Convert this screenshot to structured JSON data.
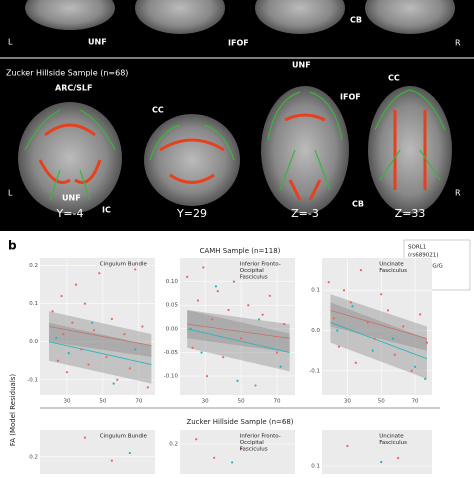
{
  "panel_a": {
    "top_labels": [
      "L",
      "UNF",
      "IFOF",
      "CB",
      "R"
    ],
    "section_title": "Zucker Hillside Sample (n=68)",
    "labels": [
      "UNF",
      "ARC/SLF",
      "CC",
      "IFOF",
      "CC",
      "L",
      "UNF",
      "IC",
      "CB",
      "R"
    ],
    "slices": [
      "Y=-4",
      "Y=29",
      "Z=-3",
      "Z=33"
    ]
  },
  "panel_b": {
    "label": "b",
    "row_titles": [
      "CAMH Sample (n=118)",
      "Zucker Hillside Sample (n=68)"
    ],
    "y_label": "FA (Model Residuals)",
    "legend": {
      "title": [
        "SORL1",
        "(rs689021)"
      ],
      "entries": [
        {
          "name": "G/A, G/G",
          "color": "#f0625a"
        },
        {
          "name": "A/A",
          "color": "#1bb6c0"
        }
      ]
    }
  },
  "chart_data": [
    {
      "type": "scatter",
      "title": [
        "Cingulum Bundle"
      ],
      "xlim": [
        15,
        79
      ],
      "ylim": [
        -0.14,
        0.22
      ],
      "xticks": [
        30,
        50,
        70
      ],
      "yticks": [
        0.2,
        0.1,
        {
          "value": 0,
          "label": "0.0"
        },
        -0.1
      ],
      "series": [
        {
          "color": "#f0625a",
          "x": [
            22,
            25,
            27,
            28,
            30,
            33,
            35,
            38,
            40,
            42,
            45,
            48,
            52,
            55,
            58,
            62,
            65,
            68,
            72,
            75
          ],
          "y": [
            0.08,
            -0.05,
            0.12,
            0.02,
            -0.08,
            0.05,
            0.15,
            -0.02,
            0.1,
            -0.06,
            0.03,
            0.18,
            -0.04,
            0.06,
            -0.1,
            0.02,
            -0.07,
            0.19,
            0.04,
            -0.12
          ]
        },
        {
          "color": "#1bb6c0",
          "x": [
            24,
            31,
            44,
            56,
            68
          ],
          "y": [
            0.01,
            -0.03,
            0.05,
            -0.11,
            -0.02
          ]
        }
      ],
      "fits": [
        {
          "color": "#f0625a",
          "x": [
            20,
            77
          ],
          "y": [
            0.04,
            -0.01
          ],
          "lower": [
            0.0,
            -0.04
          ],
          "upper": [
            0.08,
            0.02
          ]
        },
        {
          "color": "#1bb6c0",
          "x": [
            20,
            77
          ],
          "y": [
            0.0,
            -0.06
          ],
          "lower": [
            -0.05,
            -0.11
          ],
          "upper": [
            0.05,
            -0.01
          ]
        }
      ]
    },
    {
      "type": "scatter",
      "title": [
        "Inferior Fronto-",
        "Occipital",
        "Fasciculus"
      ],
      "xlim": [
        16,
        80
      ],
      "ylim": [
        -0.14,
        0.15
      ],
      "xticks": [
        30,
        50,
        70
      ],
      "yticks": [
        {
          "value": 0.1,
          "label": "0.10"
        },
        0.05,
        {
          "value": 0,
          "label": "0.00"
        },
        -0.05,
        {
          "value": -0.1,
          "label": "-0.10"
        }
      ],
      "series": [
        {
          "color": "#f0625a",
          "x": [
            20,
            23,
            26,
            29,
            31,
            34,
            37,
            40,
            43,
            46,
            50,
            54,
            58,
            62,
            66,
            70,
            74
          ],
          "y": [
            0.11,
            -0.04,
            0.06,
            0.13,
            -0.1,
            0.02,
            0.08,
            -0.06,
            0.04,
            0.1,
            -0.02,
            0.05,
            -0.12,
            0.03,
            0.07,
            -0.05,
            0.01
          ]
        },
        {
          "color": "#1bb6c0",
          "x": [
            22,
            28,
            36,
            48,
            60,
            72
          ],
          "y": [
            0.0,
            -0.05,
            0.09,
            -0.11,
            0.02,
            -0.08
          ]
        }
      ],
      "fits": [
        {
          "color": "#f0625a",
          "x": [
            20,
            77
          ],
          "y": [
            0.01,
            -0.02
          ],
          "lower": [
            -0.02,
            -0.05
          ],
          "upper": [
            0.04,
            0.01
          ]
        },
        {
          "color": "#1bb6c0",
          "x": [
            20,
            77
          ],
          "y": [
            0.0,
            -0.05
          ],
          "lower": [
            -0.04,
            -0.09
          ],
          "upper": [
            0.04,
            -0.01
          ]
        }
      ]
    },
    {
      "type": "scatter",
      "title": [
        "Uncinate",
        "Fasciculus"
      ],
      "xlim": [
        15,
        80
      ],
      "ylim": [
        -0.16,
        0.18
      ],
      "xticks": [
        30,
        50,
        70
      ],
      "yticks": [
        0.1,
        {
          "value": 0,
          "label": "0.0"
        },
        -0.1
      ],
      "series": [
        {
          "color": "#f0625a",
          "x": [
            19,
            22,
            25,
            28,
            32,
            35,
            38,
            42,
            46,
            50,
            54,
            58,
            63,
            68,
            73,
            77
          ],
          "y": [
            0.12,
            0.03,
            -0.04,
            0.1,
            0.07,
            -0.08,
            0.15,
            0.02,
            -0.02,
            0.09,
            0.05,
            -0.06,
            0.01,
            -0.1,
            0.04,
            -0.03
          ]
        },
        {
          "color": "#1bb6c0",
          "x": [
            24,
            33,
            45,
            57,
            70,
            76
          ],
          "y": [
            0.0,
            0.06,
            -0.05,
            -0.02,
            -0.09,
            -0.12
          ]
        }
      ],
      "fits": [
        {
          "color": "#f0625a",
          "x": [
            20,
            77
          ],
          "y": [
            0.05,
            -0.02
          ],
          "lower": [
            0.01,
            -0.05
          ],
          "upper": [
            0.09,
            0.01
          ]
        },
        {
          "color": "#1bb6c0",
          "x": [
            20,
            77
          ],
          "y": [
            0.02,
            -0.07
          ],
          "lower": [
            -0.03,
            -0.12
          ],
          "upper": [
            0.07,
            -0.02
          ]
        }
      ]
    },
    {
      "type": "scatter",
      "title": [
        "Cingulum Bundle"
      ],
      "xlim": [
        15,
        79
      ],
      "ylim": [
        0.155,
        0.27
      ],
      "yticks": [
        0.2
      ],
      "series": [
        {
          "color": "#f0625a",
          "x": [
            40,
            55
          ],
          "y": [
            0.25,
            0.19
          ]
        },
        {
          "color": "#1bb6c0",
          "x": [
            65
          ],
          "y": [
            0.21
          ]
        }
      ]
    },
    {
      "type": "scatter",
      "title": [
        "Inferior Fronto-",
        "Occipital",
        "Fasciculus"
      ],
      "xlim": [
        16,
        80
      ],
      "ylim": [
        0.135,
        0.23
      ],
      "yticks": [
        0.2
      ],
      "series": [
        {
          "color": "#f0625a",
          "x": [
            25,
            35,
            50
          ],
          "y": [
            0.21,
            0.17,
            0.19
          ]
        },
        {
          "color": "#1bb6c0",
          "x": [
            45
          ],
          "y": [
            0.16
          ]
        }
      ]
    },
    {
      "type": "scatter",
      "title": [
        "Uncinate",
        "Fasciculus"
      ],
      "xlim": [
        15,
        80
      ],
      "ylim": [
        0.08,
        0.19
      ],
      "yticks": [
        0.1
      ],
      "series": [
        {
          "color": "#f0625a",
          "x": [
            30,
            60
          ],
          "y": [
            0.15,
            0.12
          ]
        },
        {
          "color": "#1bb6c0",
          "x": [
            50
          ],
          "y": [
            0.11
          ]
        }
      ]
    }
  ]
}
